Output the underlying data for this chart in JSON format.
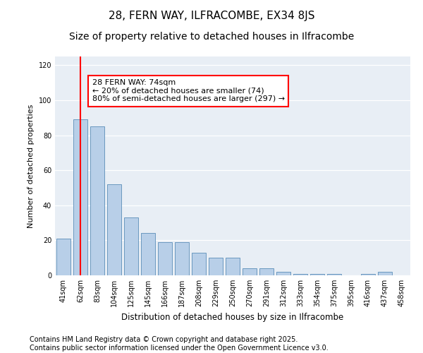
{
  "title": "28, FERN WAY, ILFRACOMBE, EX34 8JS",
  "subtitle": "Size of property relative to detached houses in Ilfracombe",
  "xlabel": "Distribution of detached houses by size in Ilfracombe",
  "ylabel": "Number of detached properties",
  "categories": [
    "41sqm",
    "62sqm",
    "83sqm",
    "104sqm",
    "125sqm",
    "145sqm",
    "166sqm",
    "187sqm",
    "208sqm",
    "229sqm",
    "250sqm",
    "270sqm",
    "291sqm",
    "312sqm",
    "333sqm",
    "354sqm",
    "375sqm",
    "395sqm",
    "416sqm",
    "437sqm",
    "458sqm"
  ],
  "values": [
    21,
    89,
    85,
    52,
    33,
    24,
    19,
    19,
    13,
    10,
    10,
    4,
    4,
    2,
    1,
    1,
    1,
    0,
    1,
    2,
    0
  ],
  "bar_color": "#b8cfe8",
  "bar_edge_color": "#5b8db8",
  "vline_x_index": 1,
  "vline_color": "red",
  "annotation_text": "28 FERN WAY: 74sqm\n← 20% of detached houses are smaller (74)\n80% of semi-detached houses are larger (297) →",
  "annotation_box_color": "white",
  "annotation_box_edge_color": "red",
  "ylim": [
    0,
    125
  ],
  "yticks": [
    0,
    20,
    40,
    60,
    80,
    100,
    120
  ],
  "background_color": "#e8eef5",
  "footer_text": "Contains HM Land Registry data © Crown copyright and database right 2025.\nContains public sector information licensed under the Open Government Licence v3.0.",
  "title_fontsize": 11,
  "subtitle_fontsize": 10,
  "xlabel_fontsize": 8.5,
  "ylabel_fontsize": 8,
  "footer_fontsize": 7,
  "annotation_fontsize": 8,
  "tick_fontsize": 7
}
